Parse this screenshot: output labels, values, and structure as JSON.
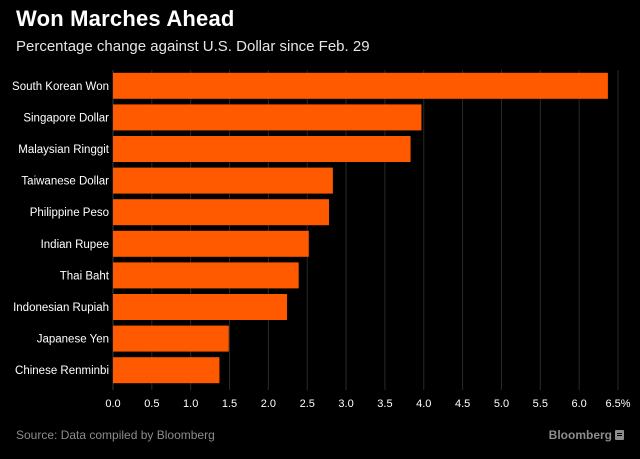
{
  "header": {
    "title": "Won Marches Ahead",
    "subtitle": "Percentage change against U.S. Dollar since Feb. 29"
  },
  "footer": {
    "source": "Source: Data compiled by Bloomberg",
    "brand": "Bloomberg",
    "brand_icon": "bloomberg-logo-icon"
  },
  "colors": {
    "background": "#000000",
    "bar": "#ff5a00",
    "grid": "#2a2a2a",
    "text": "#ffffff",
    "muted": "#8c8c8c"
  },
  "chart_data": {
    "type": "bar",
    "orientation": "horizontal",
    "title": "Won Marches Ahead",
    "subtitle": "Percentage change against U.S. Dollar since Feb. 29",
    "categories": [
      "South Korean Won",
      "Singapore Dollar",
      "Malaysian Ringgit",
      "Taiwanese Dollar",
      "Philippine Peso",
      "Indian Rupee",
      "Thai Baht",
      "Indonesian Rupiah",
      "Japanese Yen",
      "Chinese Renminbi"
    ],
    "values": [
      6.37,
      3.97,
      3.83,
      2.83,
      2.78,
      2.52,
      2.39,
      2.24,
      1.49,
      1.37
    ],
    "xlim": [
      0,
      6.5
    ],
    "xticks": [
      "0.0",
      "0.5",
      "1.0",
      "1.5",
      "2.0",
      "2.5",
      "3.0",
      "3.5",
      "4.0",
      "4.5",
      "5.0",
      "5.5",
      "6.0",
      "6.5%"
    ],
    "xlabel": "",
    "ylabel": "",
    "grid": true,
    "legend": "none"
  }
}
